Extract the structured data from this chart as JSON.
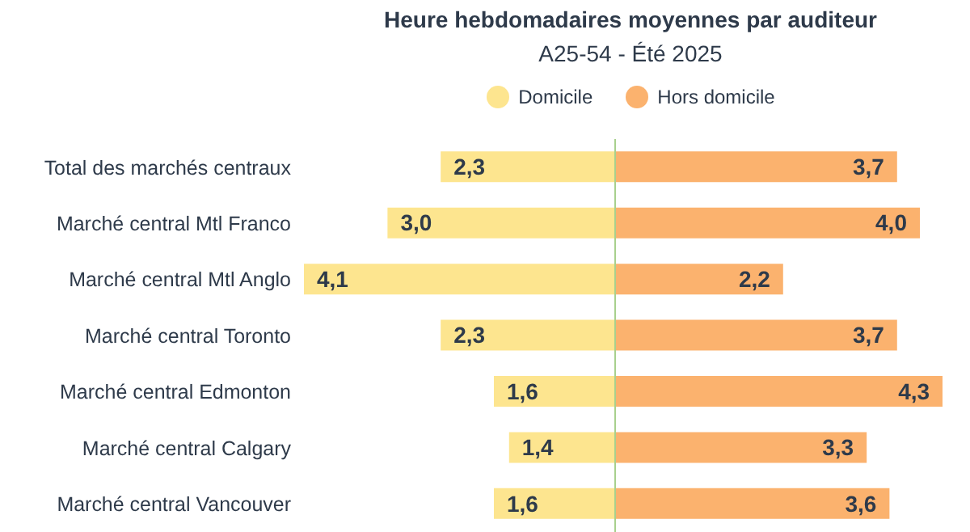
{
  "chart_data": [
    {
      "type": "bar",
      "orientation": "horizontal",
      "title": "Heure hebdomadaires moyennes par auditeur",
      "subtitle": "A25-54 - Été 2025",
      "categories": [
        "Total des marchés centraux",
        "Marché central Mtl Franco",
        "Marché central Mtl Anglo",
        "Marché central Toronto",
        "Marché central Edmonton",
        "Marché central Calgary",
        "Marché central Vancouver"
      ],
      "series": [
        {
          "name": "Domicile",
          "color": "#fde58f",
          "values": [
            2.3,
            3.0,
            4.1,
            2.3,
            1.6,
            1.4,
            1.6
          ],
          "value_labels": [
            "2,3",
            "3,0",
            "4,1",
            "2,3",
            "1,6",
            "1,4",
            "1,6"
          ]
        }
      ],
      "xlim": [
        4.1,
        0
      ],
      "tick_labels": "y",
      "legend": "top"
    },
    {
      "type": "bar",
      "orientation": "horizontal",
      "categories": [
        null,
        null,
        null,
        null,
        null,
        null,
        null
      ],
      "series": [
        {
          "name": "Hors domicile",
          "color": "#fbb26e",
          "values": [
            3.7,
            4.0,
            2.2,
            3.7,
            4.3,
            3.3,
            3.6
          ],
          "value_labels": [
            "3,7",
            "4,0",
            "2,2",
            "3,7",
            "4,3",
            "3,3",
            "3,6"
          ]
        }
      ],
      "xlim": [
        0,
        4.3
      ],
      "tick_labels": false,
      "legend": "top"
    }
  ]
}
